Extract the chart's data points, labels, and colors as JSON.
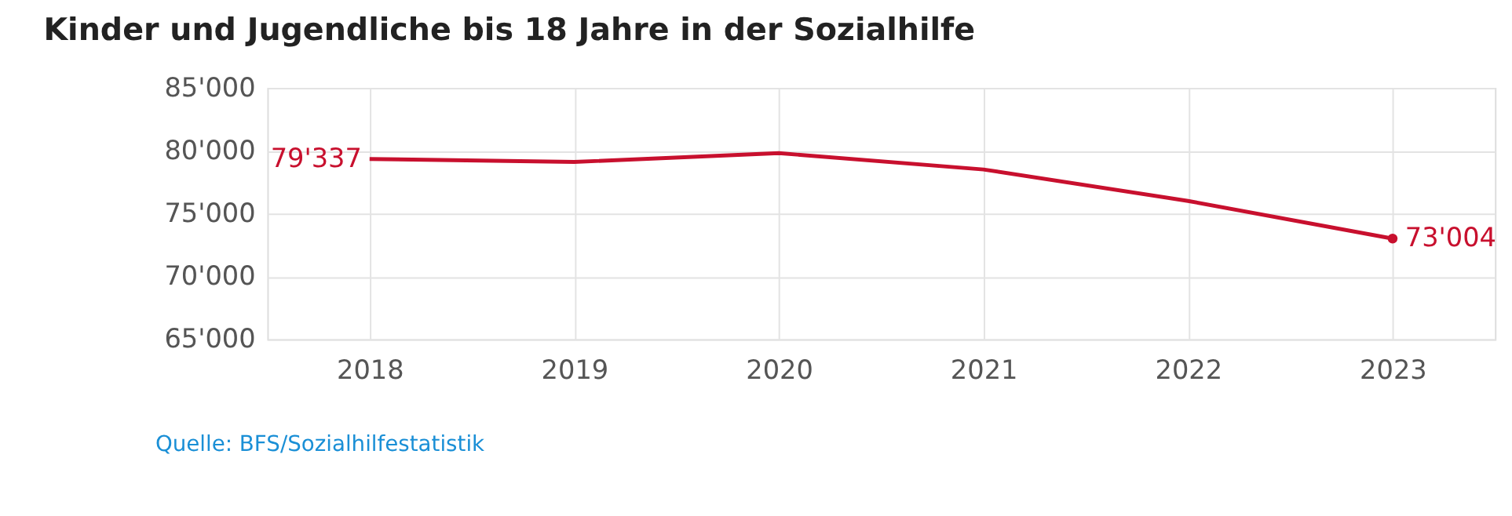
{
  "chart_data": {
    "type": "line",
    "title": "Kinder und Jugendliche bis 18 Jahre in der Sozialhilfe",
    "categories": [
      "2018",
      "2019",
      "2020",
      "2021",
      "2022",
      "2023"
    ],
    "series": [
      {
        "color": "#c8102e",
        "values": [
          79337,
          79100,
          79800,
          78500,
          76000,
          73004
        ],
        "value_labels": [
          "79'337",
          null,
          null,
          null,
          null,
          "73'004"
        ]
      }
    ],
    "ylim": [
      65000,
      85000
    ],
    "yticks": [
      {
        "value": 65000,
        "label": "65'000"
      },
      {
        "value": 70000,
        "label": "70'000"
      },
      {
        "value": 75000,
        "label": "75'000"
      },
      {
        "value": 80000,
        "label": "80'000"
      },
      {
        "value": 85000,
        "label": "85'000"
      }
    ],
    "grid": true,
    "annotations": [
      "Quelle: BFS/Sozialhilfestatistik"
    ]
  }
}
